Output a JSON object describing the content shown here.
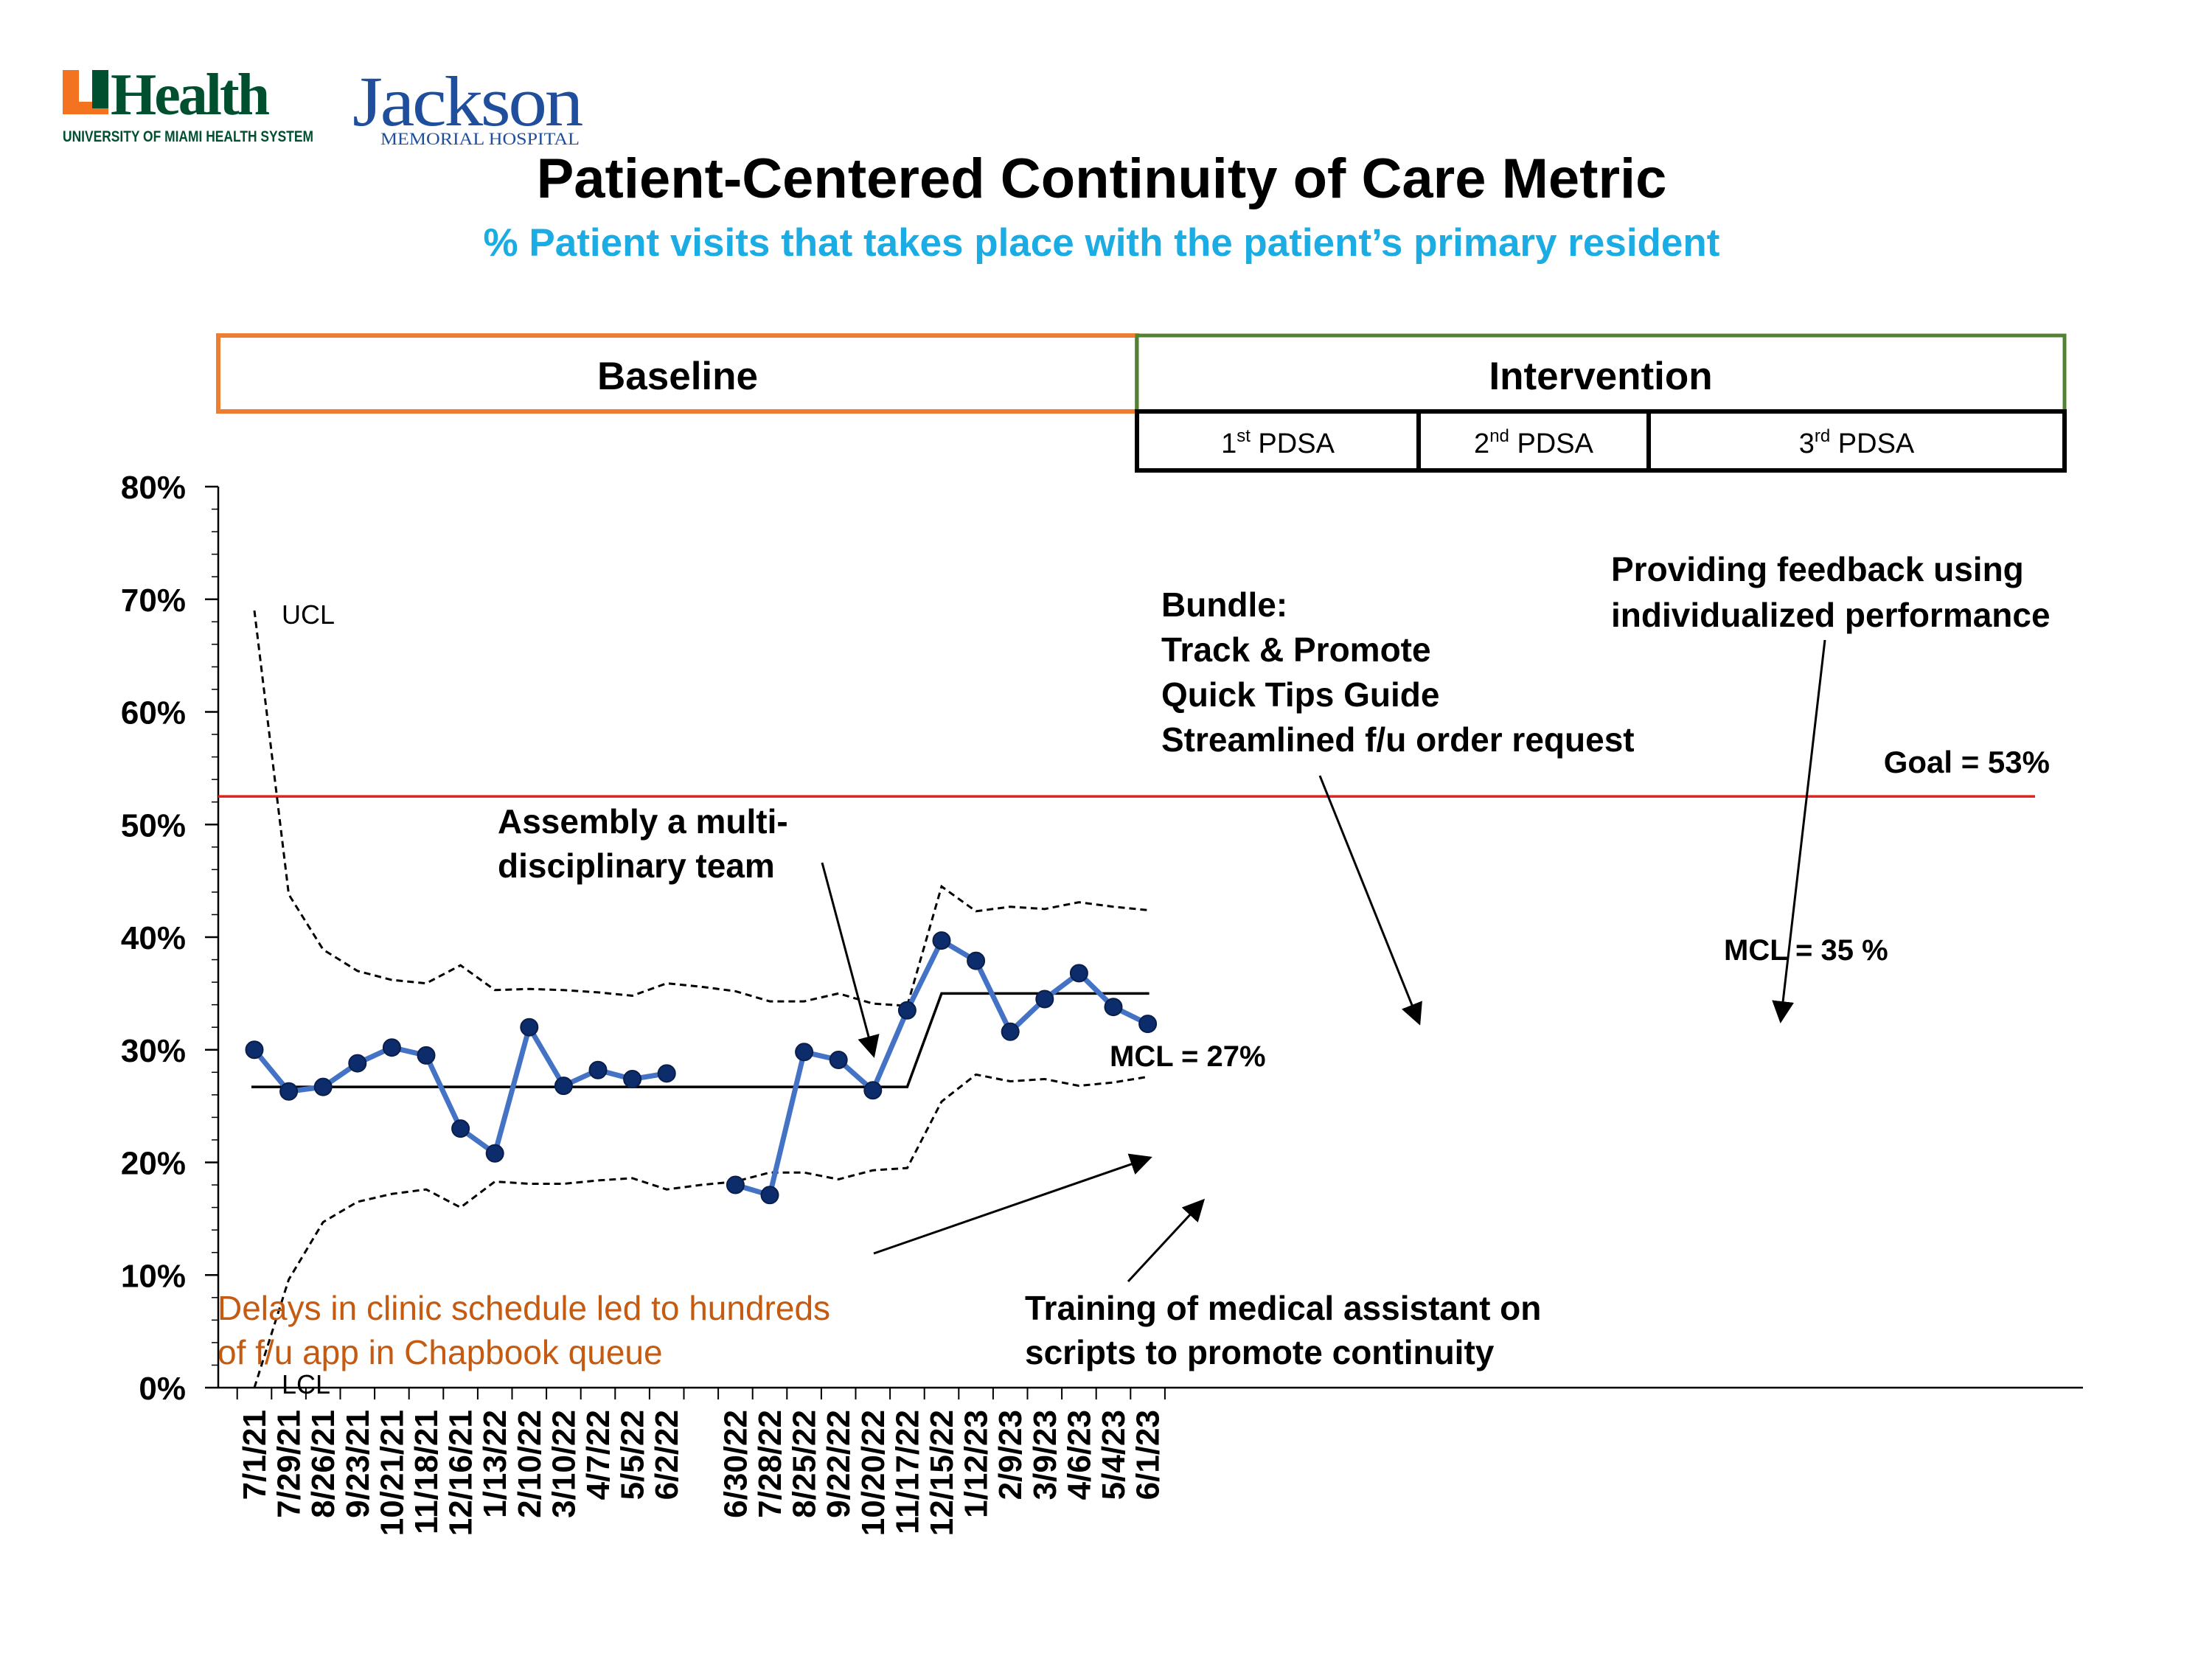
{
  "logos": {
    "uhealth_text": "Health",
    "uhealth_subtext": "UNIVERSITY OF MIAMI HEALTH SYSTEM",
    "jackson_text": "Jackson",
    "jackson_subtext": "MEMORIAL HOSPITAL"
  },
  "colors": {
    "series": "#4472C4",
    "marker": "#0D2C6C",
    "goal": "#E0231E",
    "baseline_box": "#ED7D31",
    "intervention_box": "#548235",
    "subtitle": "#1AACE3",
    "delay_note": "#C55A11",
    "uhealth_orange": "#F47321",
    "uhealth_green": "#005030",
    "jackson_blue": "#1F4E9D"
  },
  "phases": {
    "baseline": "Baseline",
    "intervention": "Intervention",
    "pdsa": [
      {
        "num": "1",
        "sup": "st",
        "rest": " PDSA"
      },
      {
        "num": "2",
        "sup": "nd",
        "rest": " PDSA"
      },
      {
        "num": "3",
        "sup": "rd",
        "rest": " PDSA"
      }
    ]
  },
  "chart_data": {
    "type": "line",
    "title": "Patient-Centered Continuity of Care Metric",
    "subtitle": "% Patient visits that takes place with the patient’s primary resident",
    "xlabel": "",
    "ylabel": "",
    "ylim": [
      0,
      80
    ],
    "yticks": [
      "0%",
      "10%",
      "20%",
      "30%",
      "40%",
      "50%",
      "60%",
      "70%",
      "80%"
    ],
    "grid": false,
    "categories": [
      "7/1/21",
      "7/29/21",
      "8/26/21",
      "9/23/21",
      "10/21/21",
      "11/18/21",
      "12/16/21",
      "1/13/22",
      "2/10/22",
      "3/10/22",
      "4/7/22",
      "5/5/22",
      "6/2/22",
      "",
      "6/30/22",
      "7/28/22",
      "8/25/22",
      "9/22/22",
      "10/20/22",
      "11/17/22",
      "12/15/22",
      "1/12/23",
      "2/9/23",
      "3/9/23",
      "4/6/23",
      "5/4/23",
      "6/1/23"
    ],
    "series": [
      {
        "values": [
          30,
          26.3,
          26.7,
          28.8,
          30.2,
          29.5,
          23,
          20.8,
          32,
          26.8,
          28.2,
          27.4,
          27.9,
          null,
          18,
          17.1,
          29.8,
          29.1,
          26.4,
          33.5,
          39.7,
          37.9,
          31.6,
          34.5,
          36.8,
          33.8,
          32.3
        ]
      },
      {
        "name": "UCL",
        "values": [
          69,
          43.8,
          38.9,
          37,
          36.2,
          35.9,
          37.5,
          35.3,
          35.4,
          35.3,
          35.1,
          34.8,
          35.9,
          35.6,
          35.2,
          34.3,
          34.3,
          35,
          34.1,
          33.9,
          44.5,
          42.3,
          42.7,
          42.5,
          43.1,
          42.7,
          42.4
        ]
      },
      {
        "name": "LCL",
        "values": [
          0,
          9.6,
          14.7,
          16.5,
          17.2,
          17.6,
          16,
          18.3,
          18.1,
          18.1,
          18.4,
          18.6,
          17.6,
          18,
          18.3,
          19.1,
          19.1,
          18.5,
          19.3,
          19.5,
          25.4,
          27.8,
          27.2,
          27.4,
          26.8,
          27.1,
          27.6
        ]
      },
      {
        "name": "MCL",
        "values": [
          26.7,
          26.7,
          26.7,
          26.7,
          26.7,
          26.7,
          26.7,
          26.7,
          26.7,
          26.7,
          26.7,
          26.7,
          26.7,
          26.7,
          26.7,
          26.7,
          26.7,
          26.7,
          26.7,
          26.7,
          35,
          35,
          35,
          35,
          35,
          35,
          35
        ]
      }
    ],
    "goal": 52.5,
    "labels": {
      "ucl": "UCL",
      "lcl": "LCL",
      "goal": "Goal = 53%",
      "mcl_baseline": "MCL = 27%",
      "mcl_intervention": "MCL = 35 %"
    },
    "annotations": {
      "team": [
        "Assembly a multi-",
        "disciplinary team"
      ],
      "bundle": [
        "Bundle:",
        "Track & Promote",
        "Quick Tips Guide",
        "Streamlined f/u order request"
      ],
      "feedback": [
        "Providing feedback using",
        "individualized performance"
      ],
      "training": [
        "Training of medical assistant on",
        "scripts to promote continuity"
      ],
      "delay": [
        "Delays in clinic schedule led to hundreds",
        "of f/u app in Chapbook queue"
      ]
    }
  }
}
